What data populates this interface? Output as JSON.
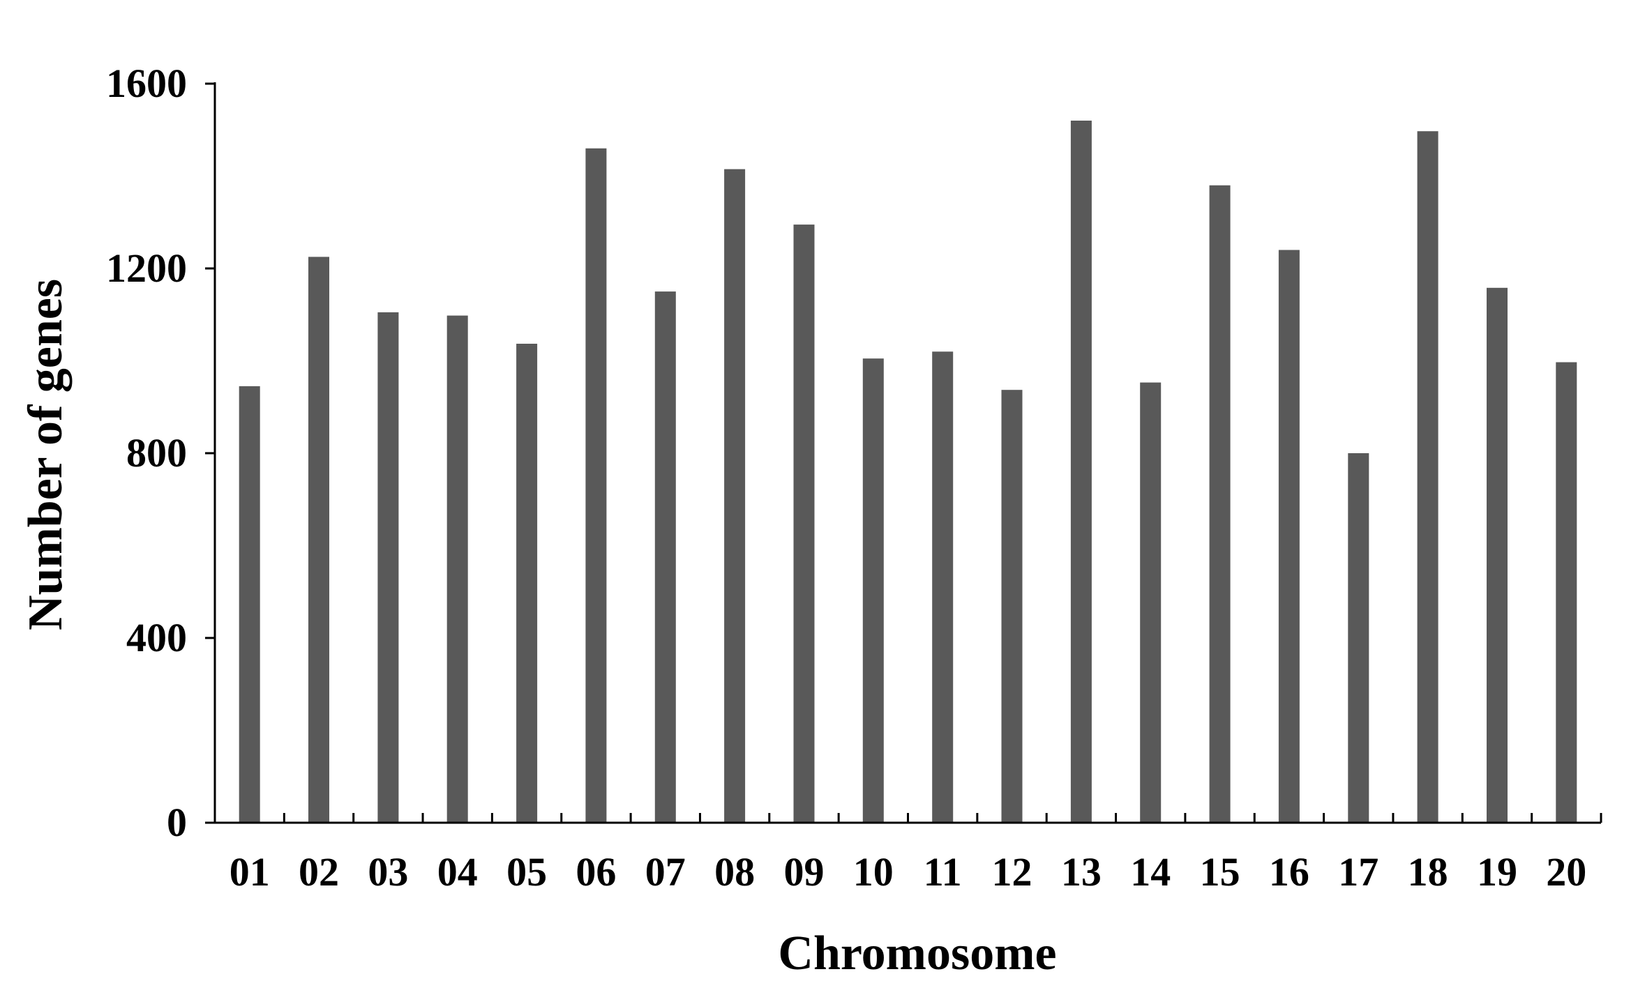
{
  "chart_data": {
    "type": "bar",
    "categories": [
      "01",
      "02",
      "03",
      "04",
      "05",
      "06",
      "07",
      "08",
      "09",
      "10",
      "11",
      "12",
      "13",
      "14",
      "15",
      "16",
      "17",
      "18",
      "19",
      "20"
    ],
    "values": [
      945,
      1225,
      1105,
      1098,
      1037,
      1460,
      1150,
      1415,
      1295,
      1005,
      1020,
      937,
      1520,
      953,
      1380,
      1240,
      800,
      1497,
      1158,
      997
    ],
    "xlabel": "Chromosome",
    "ylabel": "Number of genes",
    "ylim": [
      0,
      1600
    ],
    "yticks": [
      "0",
      "400",
      "800",
      "1200",
      "1600"
    ],
    "grid": false,
    "legend": "none",
    "bar_color": "#595959",
    "axis_color": "#000000"
  }
}
